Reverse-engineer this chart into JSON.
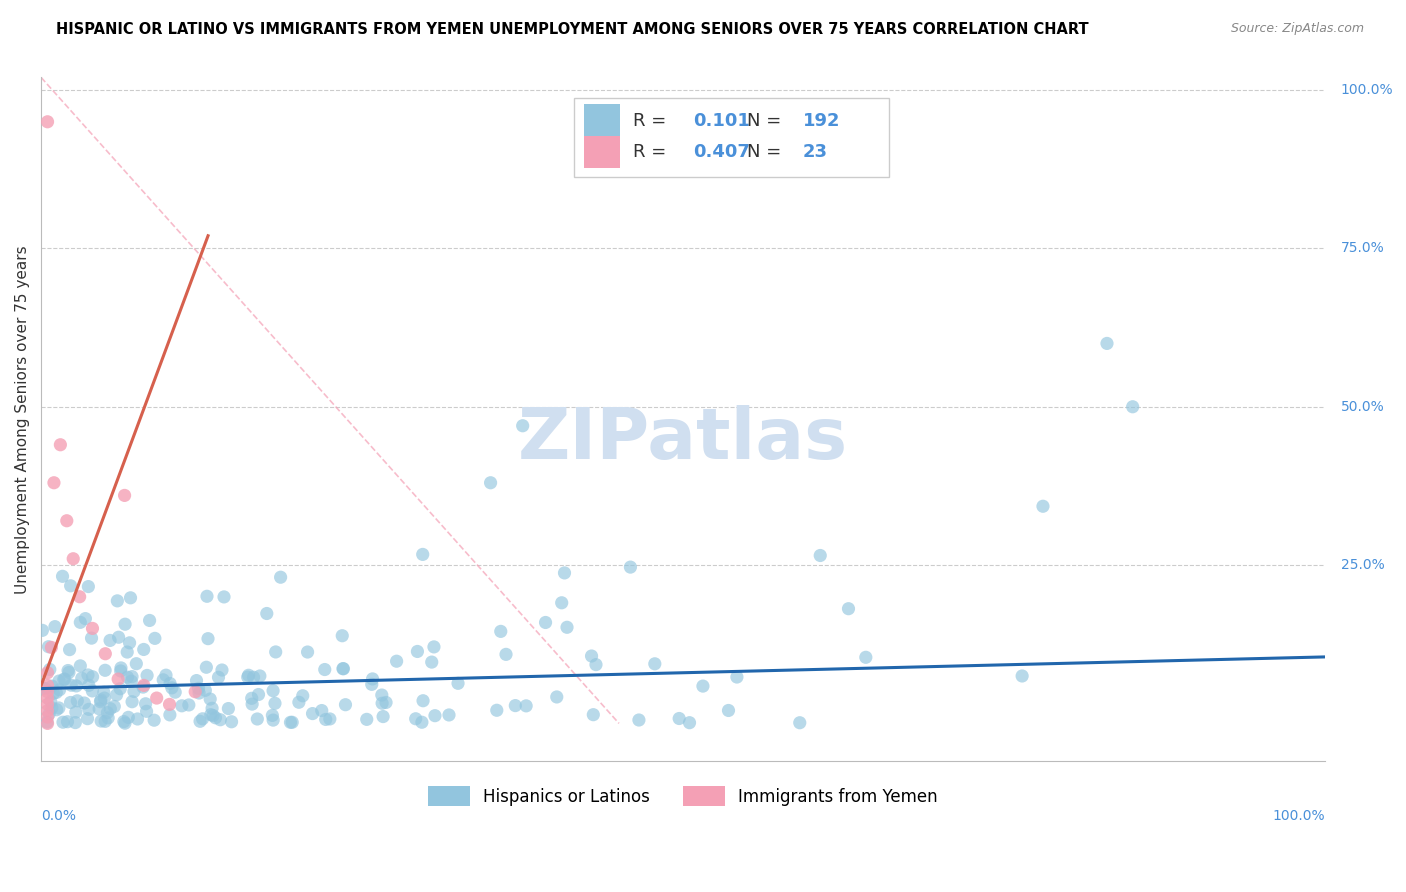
{
  "title": "HISPANIC OR LATINO VS IMMIGRANTS FROM YEMEN UNEMPLOYMENT AMONG SENIORS OVER 75 YEARS CORRELATION CHART",
  "source": "Source: ZipAtlas.com",
  "ylabel": "Unemployment Among Seniors over 75 years",
  "legend1_label": "Hispanics or Latinos",
  "legend2_label": "Immigrants from Yemen",
  "R1": "0.101",
  "N1": "192",
  "R2": "0.407",
  "N2": "23",
  "blue_color": "#92c5de",
  "pink_color": "#f4a0b5",
  "blue_line_color": "#2166ac",
  "pink_line_color": "#d6604d",
  "watermark_color": "#d0dff0",
  "background_color": "#ffffff",
  "grid_color": "#cccccc",
  "title_color": "#000000",
  "source_color": "#888888",
  "axis_label_color": "#4a90d9",
  "legend_text_color": "#333333",
  "legend_value_color": "#4a90d9"
}
